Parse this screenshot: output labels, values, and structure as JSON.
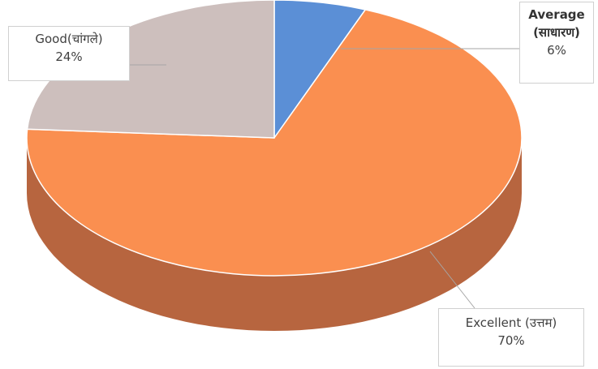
{
  "chart_data": {
    "type": "pie",
    "style": "3d",
    "slices": [
      {
        "label": "Average",
        "label_secondary": "(साधारण)",
        "value": 6,
        "value_label": "6%",
        "color": "#5b8fd6",
        "side_color": "#3e6aa8"
      },
      {
        "label": "Excellent (उत्तम)",
        "value": 70,
        "value_label": "70%",
        "color": "#fa8f50",
        "side_color": "#b7653f"
      },
      {
        "label": "Good(चांगले)",
        "value": 24,
        "value_label": "24%",
        "color": "#cdbfbd",
        "side_color": "#9a8c8a"
      }
    ],
    "start_angle_deg": 0,
    "direction": "clockwise"
  }
}
